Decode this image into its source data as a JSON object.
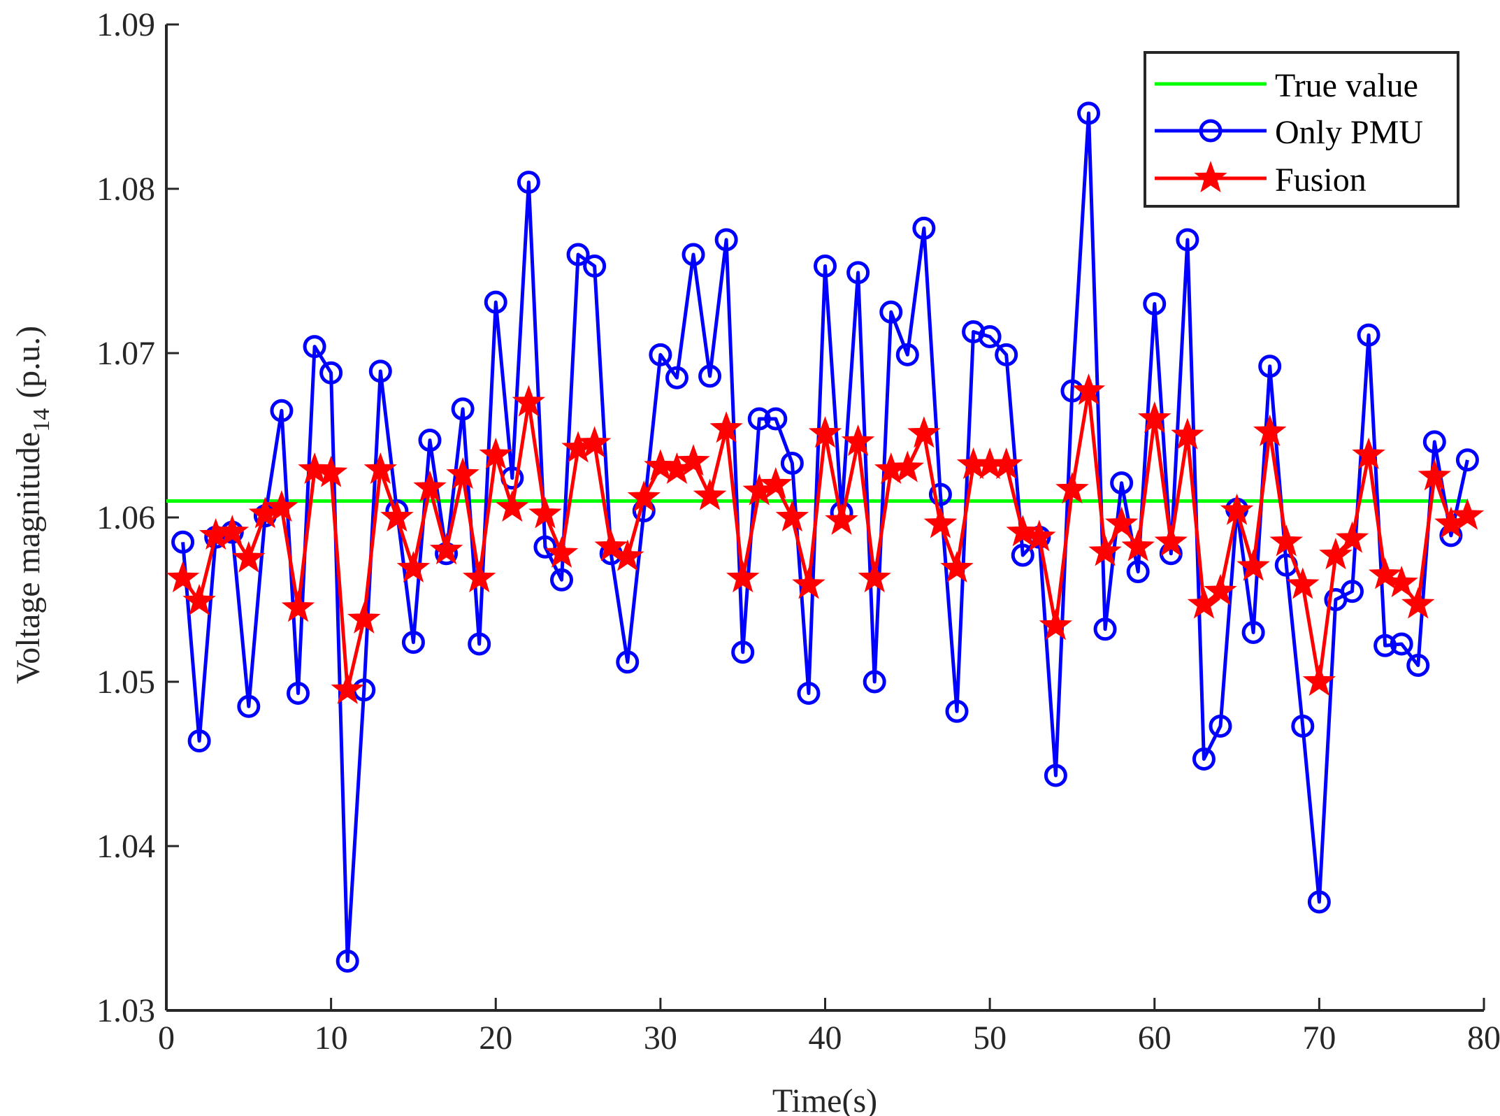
{
  "chart_data": {
    "type": "line",
    "title": "",
    "xlabel": "Time(s)",
    "ylabel": "Voltage magnitude",
    "ylabel_subscript": "14",
    "ylabel_unit": "(p.u.)",
    "xlim": [
      0,
      80
    ],
    "ylim": [
      1.03,
      1.09
    ],
    "xticks": [
      0,
      10,
      20,
      30,
      40,
      50,
      60,
      70,
      80
    ],
    "xtick_labels": [
      "0",
      "10",
      "20",
      "30",
      "40",
      "50",
      "60",
      "70",
      "80"
    ],
    "yticks": [
      1.03,
      1.04,
      1.05,
      1.06,
      1.07,
      1.08,
      1.09
    ],
    "ytick_labels": [
      "1.03",
      "1.04",
      "1.05",
      "1.06",
      "1.07",
      "1.08",
      "1.09"
    ],
    "grid": false,
    "legend_position": "top-right",
    "x": [
      1,
      2,
      3,
      4,
      5,
      6,
      7,
      8,
      9,
      10,
      11,
      12,
      13,
      14,
      15,
      16,
      17,
      18,
      19,
      20,
      21,
      22,
      23,
      24,
      25,
      26,
      27,
      28,
      29,
      30,
      31,
      32,
      33,
      34,
      35,
      36,
      37,
      38,
      39,
      40,
      41,
      42,
      43,
      44,
      45,
      46,
      47,
      48,
      49,
      50,
      51,
      52,
      53,
      54,
      55,
      56,
      57,
      58,
      59,
      60,
      61,
      62,
      63,
      64,
      65,
      66,
      67,
      68,
      69,
      70,
      71,
      72,
      73,
      74,
      75,
      76,
      77,
      78,
      79
    ],
    "series": [
      {
        "name": "True value",
        "color": "#00ff00",
        "marker": "none",
        "x": [
          0,
          79
        ],
        "values": [
          1.061,
          1.061
        ]
      },
      {
        "name": "Only PMU",
        "color": "#0000ff",
        "marker": "circle",
        "values": [
          1.0585,
          1.0464,
          1.0588,
          1.0591,
          1.0485,
          1.0601,
          1.0665,
          1.0493,
          1.0704,
          1.0688,
          1.033,
          1.0495,
          1.0689,
          1.0604,
          1.0524,
          1.0647,
          1.0578,
          1.0666,
          1.0523,
          1.0731,
          1.0624,
          1.0804,
          1.0582,
          1.0562,
          1.076,
          1.0753,
          1.0578,
          1.0512,
          1.0604,
          1.0699,
          1.0685,
          1.076,
          1.0686,
          1.0769,
          1.0518,
          1.066,
          1.066,
          1.0633,
          1.0493,
          1.0753,
          1.0603,
          1.0749,
          1.05,
          1.0725,
          1.0699,
          1.0776,
          1.0614,
          1.0482,
          1.0713,
          1.071,
          1.0699,
          1.0577,
          1.0588,
          1.0443,
          1.0677,
          1.0846,
          1.0532,
          1.0621,
          1.0567,
          1.073,
          1.0578,
          1.0769,
          1.0453,
          1.0473,
          1.0605,
          1.053,
          1.0692,
          1.0571,
          1.0473,
          1.0366,
          1.055,
          1.0555,
          1.0711,
          1.0522,
          1.0523,
          1.051,
          1.0646,
          1.0589,
          1.0635
        ]
      },
      {
        "name": "Fusion",
        "color": "#ff0000",
        "marker": "star",
        "values": [
          1.0563,
          1.0549,
          1.0589,
          1.0591,
          1.0575,
          1.0602,
          1.0606,
          1.0545,
          1.0629,
          1.0627,
          1.0495,
          1.0538,
          1.0629,
          1.06,
          1.0569,
          1.0618,
          1.058,
          1.0626,
          1.0563,
          1.0638,
          1.0606,
          1.067,
          1.0602,
          1.0578,
          1.0642,
          1.0645,
          1.0582,
          1.0576,
          1.0612,
          1.0631,
          1.0629,
          1.0634,
          1.0613,
          1.0654,
          1.0563,
          1.0616,
          1.062,
          1.06,
          1.0559,
          1.0651,
          1.0598,
          1.0646,
          1.0563,
          1.0629,
          1.063,
          1.0651,
          1.0596,
          1.0569,
          1.0632,
          1.0632,
          1.0632,
          1.0591,
          1.0588,
          1.0534,
          1.0617,
          1.0677,
          1.0579,
          1.0596,
          1.0582,
          1.066,
          1.0585,
          1.065,
          1.0547,
          1.0555,
          1.0604,
          1.057,
          1.0652,
          1.0585,
          1.0559,
          1.05,
          1.0577,
          1.0587,
          1.0638,
          1.0565,
          1.056,
          1.0547,
          1.0625,
          1.0596,
          1.0601
        ]
      }
    ]
  }
}
